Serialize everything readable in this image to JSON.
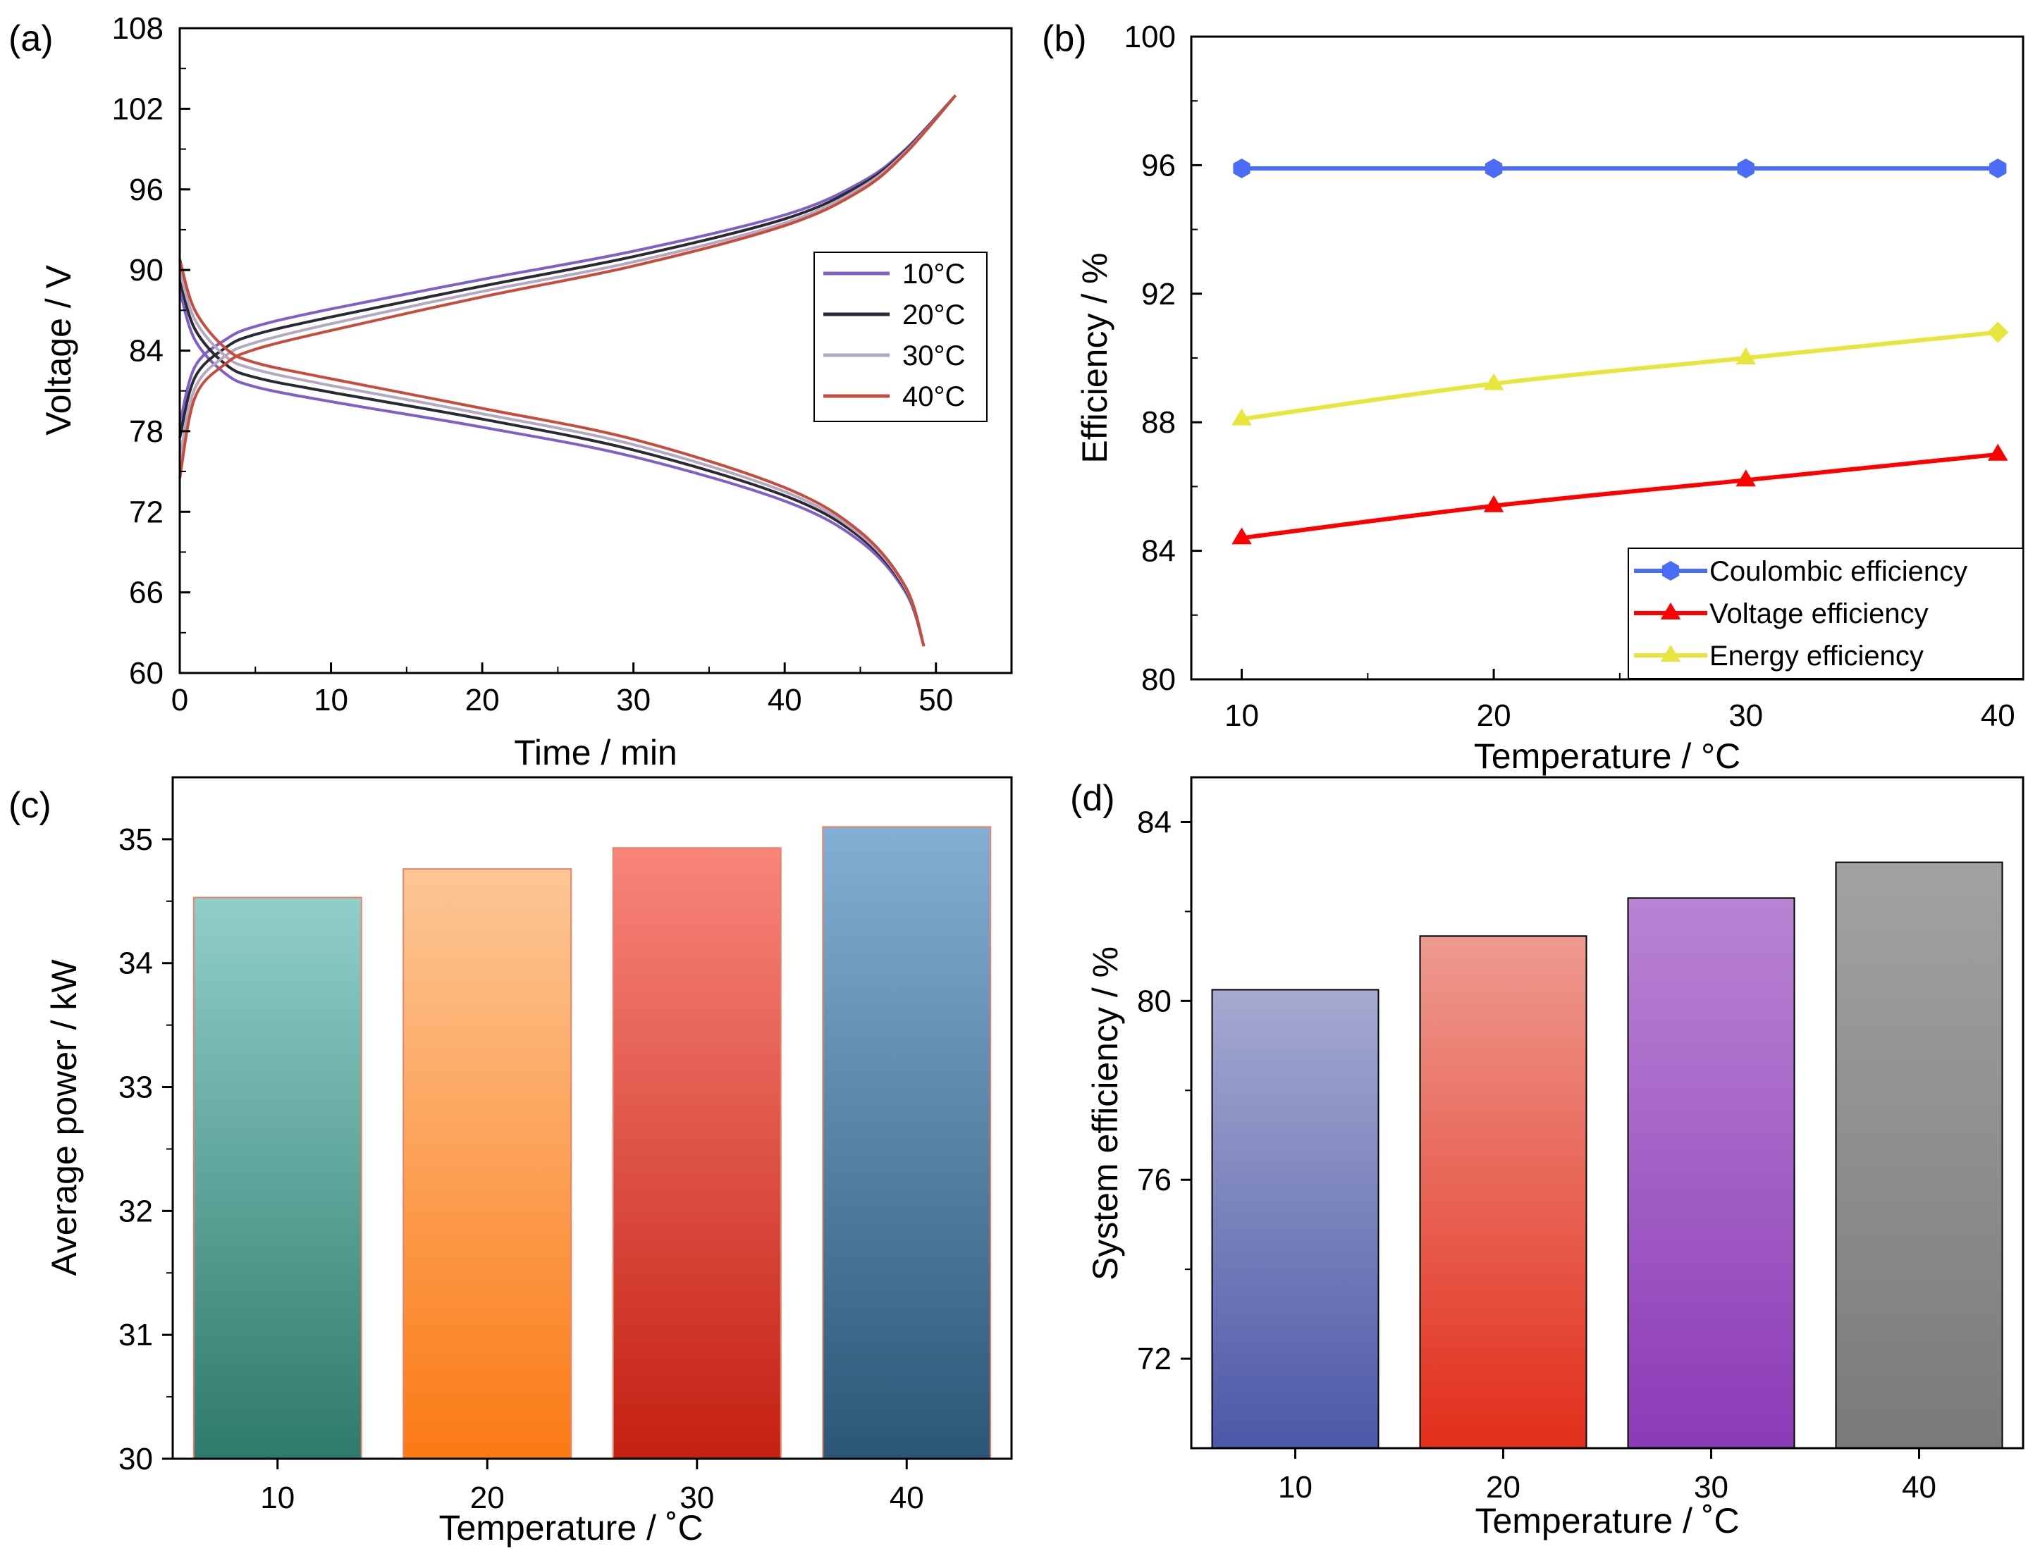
{
  "chart_data": [
    {
      "panel": "(a)",
      "type": "line",
      "xlabel": "Time / min",
      "ylabel": "Voltage / V",
      "xlim": [
        0,
        55
      ],
      "ylim": [
        60,
        108
      ],
      "xticks": [
        "0",
        "10",
        "20",
        "30",
        "40",
        "50"
      ],
      "yticks": [
        "60",
        "66",
        "72",
        "78",
        "84",
        "90",
        "96",
        "102",
        "108"
      ],
      "legend_position": "right-middle",
      "series": [
        {
          "name": "10°C",
          "color": "#7f5fc8",
          "charge_end_time": 51.3,
          "discharge_end_time": 49.2,
          "charge": [
            [
              0,
              78.5
            ],
            [
              1,
              82.8
            ],
            [
              3,
              84.8
            ],
            [
              5,
              85.8
            ],
            [
              10,
              87.1
            ],
            [
              20,
              89.3
            ],
            [
              30,
              91.4
            ],
            [
              40,
              94.1
            ],
            [
              45,
              96.5
            ],
            [
              48,
              99.0
            ],
            [
              51.3,
              103.0
            ]
          ],
          "discharge": [
            [
              0,
              88.5
            ],
            [
              1,
              84.8
            ],
            [
              3,
              82.3
            ],
            [
              5,
              81.3
            ],
            [
              10,
              80.2
            ],
            [
              20,
              78.3
            ],
            [
              30,
              76.1
            ],
            [
              40,
              72.8
            ],
            [
              45,
              69.8
            ],
            [
              48,
              66.0
            ],
            [
              49.2,
              62.0
            ]
          ]
        },
        {
          "name": "20°C",
          "color": "#2a2a35",
          "charge_end_time": 51.3,
          "discharge_end_time": 49.2,
          "charge": [
            [
              0,
              77.5
            ],
            [
              1,
              82.0
            ],
            [
              3,
              84.2
            ],
            [
              5,
              85.2
            ],
            [
              10,
              86.5
            ],
            [
              20,
              88.8
            ],
            [
              30,
              91.0
            ],
            [
              40,
              93.8
            ],
            [
              45,
              96.3
            ],
            [
              48,
              98.9
            ],
            [
              51.3,
              103.0
            ]
          ],
          "discharge": [
            [
              0,
              89.3
            ],
            [
              1,
              85.6
            ],
            [
              3,
              83.0
            ],
            [
              5,
              82.0
            ],
            [
              10,
              80.9
            ],
            [
              20,
              78.9
            ],
            [
              30,
              76.6
            ],
            [
              40,
              73.2
            ],
            [
              45,
              70.1
            ],
            [
              48,
              66.2
            ],
            [
              49.2,
              62.0
            ]
          ]
        },
        {
          "name": "30°C",
          "color": "#b4a9c0",
          "charge_end_time": 51.3,
          "discharge_end_time": 49.2,
          "charge": [
            [
              0,
              76.0
            ],
            [
              1,
              81.2
            ],
            [
              3,
              83.6
            ],
            [
              5,
              84.6
            ],
            [
              10,
              86.0
            ],
            [
              20,
              88.4
            ],
            [
              30,
              90.6
            ],
            [
              40,
              93.5
            ],
            [
              45,
              96.1
            ],
            [
              48,
              98.8
            ],
            [
              51.3,
              103.0
            ]
          ],
          "discharge": [
            [
              0,
              90.0
            ],
            [
              1,
              86.3
            ],
            [
              3,
              83.6
            ],
            [
              5,
              82.6
            ],
            [
              10,
              81.4
            ],
            [
              20,
              79.3
            ],
            [
              30,
              77.0
            ],
            [
              40,
              73.5
            ],
            [
              45,
              70.3
            ],
            [
              48,
              66.3
            ],
            [
              49.2,
              62.0
            ]
          ]
        },
        {
          "name": "40°C",
          "color": "#c84c3c",
          "charge_end_time": 51.3,
          "discharge_end_time": 49.2,
          "charge": [
            [
              0,
              74.5
            ],
            [
              1,
              80.5
            ],
            [
              3,
              83.0
            ],
            [
              5,
              84.1
            ],
            [
              10,
              85.5
            ],
            [
              20,
              88.0
            ],
            [
              30,
              90.3
            ],
            [
              40,
              93.3
            ],
            [
              45,
              95.9
            ],
            [
              48,
              98.7
            ],
            [
              51.3,
              103.0
            ]
          ],
          "discharge": [
            [
              0,
              90.8
            ],
            [
              1,
              87.0
            ],
            [
              3,
              84.2
            ],
            [
              5,
              83.1
            ],
            [
              10,
              81.9
            ],
            [
              20,
              79.7
            ],
            [
              30,
              77.4
            ],
            [
              40,
              73.8
            ],
            [
              45,
              70.5
            ],
            [
              48,
              66.4
            ],
            [
              49.2,
              62.0
            ]
          ]
        }
      ]
    },
    {
      "panel": "(b)",
      "type": "line",
      "xlabel": "Temperature / °C",
      "ylabel": "Efficiency / %",
      "xlim": [
        8,
        41
      ],
      "ylim": [
        80,
        100
      ],
      "xticks": [
        "10",
        "20",
        "30",
        "40"
      ],
      "yticks": [
        "80",
        "84",
        "88",
        "92",
        "96",
        "100"
      ],
      "legend_position": "bottom-right",
      "categories": [
        10,
        20,
        30,
        40
      ],
      "series": [
        {
          "name": "Coulombic efficiency",
          "color": "#4a6cf7",
          "marker": "hexagon",
          "values": [
            95.9,
            95.9,
            95.9,
            95.9
          ]
        },
        {
          "name": "Voltage efficiency",
          "color": "#ff0000",
          "marker": "triangle",
          "values": [
            84.4,
            85.4,
            86.2,
            87.0
          ]
        },
        {
          "name": "Energy efficiency",
          "color": "#e6e63c",
          "marker": "triangle",
          "values": [
            88.1,
            89.2,
            90.0,
            90.8
          ]
        }
      ]
    },
    {
      "panel": "(c)",
      "type": "bar",
      "xlabel": "Temperature / ˚C",
      "ylabel": "Average  power / kW",
      "ylim": [
        30,
        35.5
      ],
      "yticks": [
        "30",
        "31",
        "32",
        "33",
        "34",
        "35"
      ],
      "categories": [
        "10",
        "20",
        "30",
        "40"
      ],
      "values": [
        34.53,
        34.76,
        34.93,
        35.1
      ],
      "bar_colors": [
        {
          "top": "#90cfc8",
          "bottom": "#2e7a6c"
        },
        {
          "top": "#fcc796",
          "bottom": "#fb7a14"
        },
        {
          "top": "#f8857a",
          "bottom": "#c42012"
        },
        {
          "top": "#84afd4",
          "bottom": "#2c5676"
        }
      ],
      "edge_color": "#e8836e"
    },
    {
      "panel": "(d)",
      "type": "bar",
      "xlabel": "Temperature / ˚C",
      "ylabel": "System efficiency / %",
      "ylim": [
        70,
        85
      ],
      "yticks": [
        "72",
        "76",
        "80",
        "84"
      ],
      "categories": [
        "10",
        "20",
        "30",
        "40"
      ],
      "values": [
        80.25,
        81.45,
        82.3,
        83.1
      ],
      "bar_colors": [
        {
          "top": "#a5aad0",
          "bottom": "#4c58a8"
        },
        {
          "top": "#ee9a90",
          "bottom": "#e22e1a"
        },
        {
          "top": "#b984d4",
          "bottom": "#8c3ab6"
        },
        {
          "top": "#a2a2a2",
          "bottom": "#7a7a7a"
        }
      ],
      "edge_color": "#000000"
    }
  ]
}
